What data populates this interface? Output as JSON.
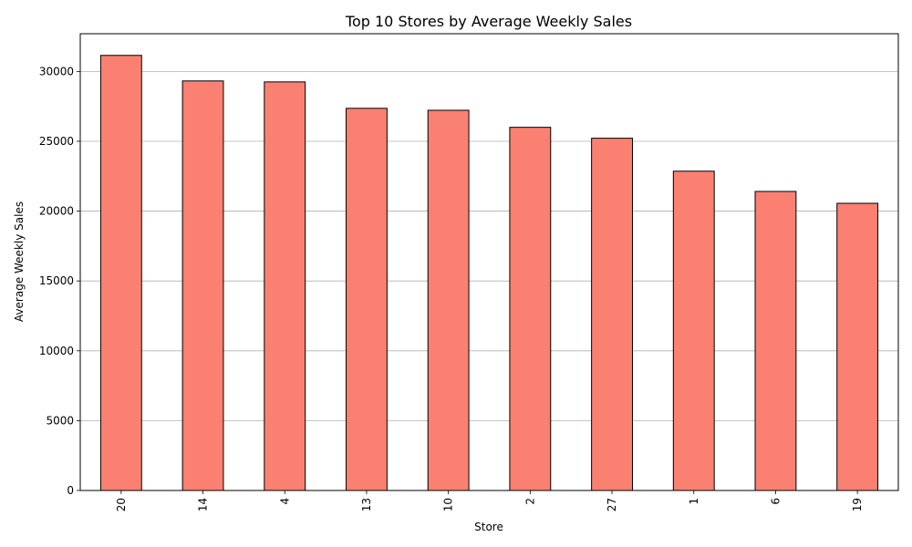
{
  "colors": {
    "bar_fill": "#fa8072",
    "bar_edge": "#000000",
    "grid": "#b0b0b0"
  },
  "chart_data": {
    "type": "bar",
    "title": "Top 10 Stores by Average Weekly Sales",
    "xlabel": "Store",
    "ylabel": "Average Weekly Sales",
    "categories": [
      "20",
      "14",
      "4",
      "13",
      "10",
      "2",
      "27",
      "1",
      "6",
      "19"
    ],
    "values": [
      31150,
      29320,
      29250,
      27360,
      27220,
      26000,
      25220,
      22860,
      21410,
      20560
    ],
    "ylim": [
      0,
      32700
    ],
    "yticks": [
      0,
      5000,
      10000,
      15000,
      20000,
      25000,
      30000
    ],
    "ytick_labels": [
      "0",
      "5000",
      "10000",
      "15000",
      "20000",
      "25000",
      "30000"
    ],
    "grid": "y-major",
    "legend": "none"
  }
}
